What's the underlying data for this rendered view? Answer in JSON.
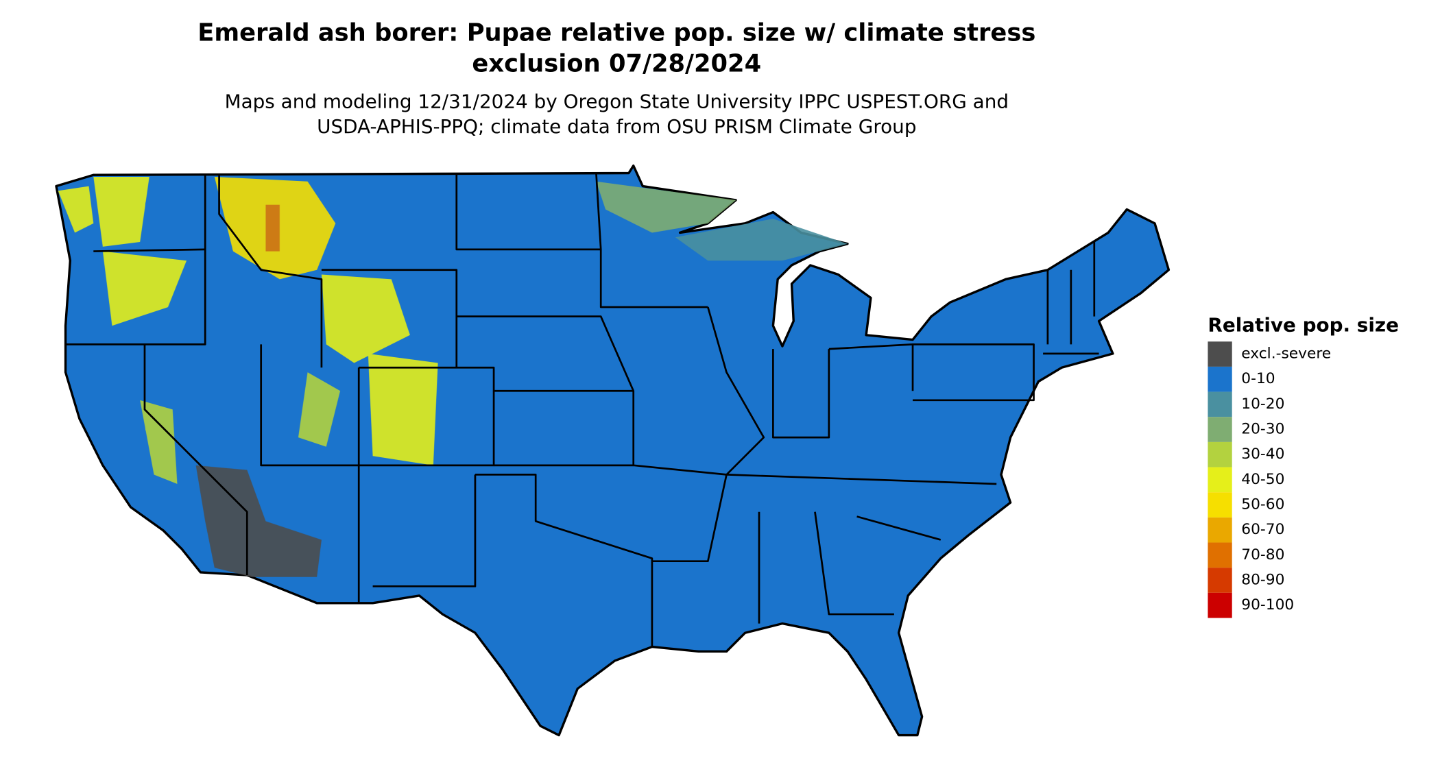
{
  "title_lines": [
    "Emerald ash borer: Pupae relative pop. size w/ climate stress",
    "exclusion 07/28/2024"
  ],
  "subtitle_lines": [
    "Maps and modeling 12/31/2024 by Oregon State University IPPC USPEST.ORG and",
    "USDA-APHIS-PPQ; climate data from OSU PRISM Climate Group"
  ],
  "legend": {
    "title": "Relative pop. size",
    "items": [
      {
        "label": "excl.-severe",
        "color": "#4d4d4d"
      },
      {
        "label": "0-10",
        "color": "#1b74cc"
      },
      {
        "label": "10-20",
        "color": "#4a90a0"
      },
      {
        "label": "20-30",
        "color": "#7fad72"
      },
      {
        "label": "30-40",
        "color": "#b3d23f"
      },
      {
        "label": "40-50",
        "color": "#e5ef1a"
      },
      {
        "label": "50-60",
        "color": "#f6df00"
      },
      {
        "label": "60-70",
        "color": "#eaa800"
      },
      {
        "label": "70-80",
        "color": "#e07000"
      },
      {
        "label": "80-90",
        "color": "#d63a00"
      },
      {
        "label": "90-100",
        "color": "#cc0000"
      }
    ]
  }
}
